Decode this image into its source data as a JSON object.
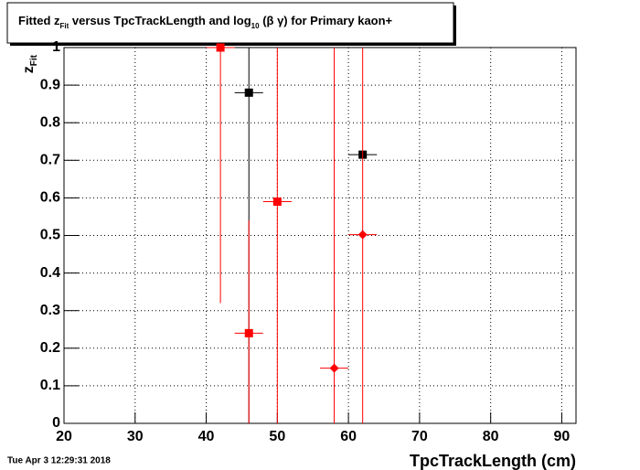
{
  "chart_data": {
    "type": "scatter",
    "title": [
      "Fitted  z",
      "Fit",
      "  versus TpcTrackLength and log",
      "10",
      " (β γ) for Primary kaon+"
    ],
    "ylabel": [
      "z",
      "Fit"
    ],
    "xlabel": "TpcTrackLength (cm)",
    "timestamp": "Tue Apr  3 12:29:31 2018",
    "xlim": [
      20,
      92
    ],
    "xticks": [
      20,
      30,
      40,
      50,
      60,
      70,
      80,
      90
    ],
    "ylim": [
      0,
      1
    ],
    "yticks": [
      0,
      0.1,
      0.2,
      0.3,
      0.4,
      0.5,
      0.6,
      0.7,
      0.8,
      0.9,
      1
    ],
    "grid": true,
    "series": [
      {
        "color": "#000000",
        "marker": "square",
        "x": [
          46,
          62
        ],
        "values": [
          0.88,
          0.715
        ],
        "xerr": [
          2,
          2
        ],
        "yerr": [
          1,
          0
        ]
      },
      {
        "color": "#ff0000",
        "marker": "square",
        "x": [
          42,
          46,
          50
        ],
        "values": [
          1.0,
          0.24,
          0.59
        ],
        "xerr": [
          2,
          2,
          2
        ],
        "yerr": [
          0.68,
          0.3,
          1
        ]
      },
      {
        "color": "#ff0000",
        "marker": "diamond",
        "x": [
          58,
          62
        ],
        "values": [
          0.147,
          0.502
        ],
        "xerr": [
          2,
          2
        ],
        "yerr": [
          1,
          1
        ]
      }
    ]
  }
}
